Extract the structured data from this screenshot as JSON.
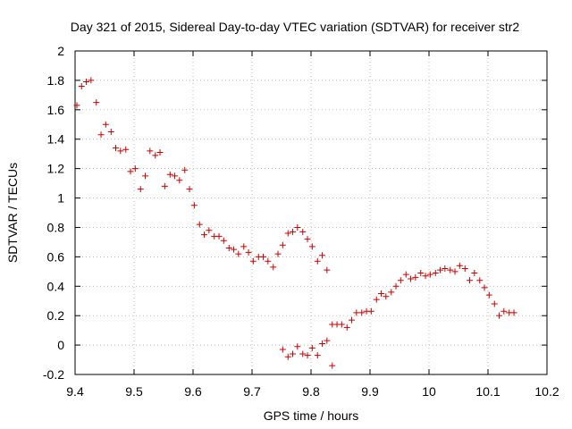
{
  "chart_data": {
    "type": "scatter",
    "title": "Day 321 of 2015, Sidereal Day-to-day VTEC variation (SDTVAR) for receiver str2",
    "xlabel": "GPS time / hours",
    "ylabel": "SDTVAR / TECUs",
    "xlim": [
      9.4,
      10.2
    ],
    "ylim": [
      -0.2,
      2.0
    ],
    "x_ticks": [
      9.4,
      9.5,
      9.6,
      9.7,
      9.8,
      9.9,
      10.0,
      10.1,
      10.2
    ],
    "x_tick_labels": [
      "9.4",
      "9.5",
      "9.6",
      "9.7",
      "9.8",
      "9.9",
      "10",
      "10.1",
      "10.2"
    ],
    "y_ticks": [
      -0.2,
      0,
      0.2,
      0.4,
      0.6,
      0.8,
      1.0,
      1.2,
      1.4,
      1.6,
      1.8,
      2.0
    ],
    "y_tick_labels": [
      "-0.2",
      "0",
      "0.2",
      "0.4",
      "0.6",
      "0.8",
      "1",
      "1.2",
      "1.4",
      "1.6",
      "1.8",
      "2"
    ],
    "grid": true,
    "marker": "+",
    "color": "#cc0000",
    "series": [
      {
        "name": "str2",
        "x": [
          9.403,
          9.411,
          9.419,
          9.427,
          9.436,
          9.444,
          9.452,
          9.461,
          9.469,
          9.477,
          9.486,
          9.494,
          9.502,
          9.511,
          9.519,
          9.527,
          9.536,
          9.544,
          9.552,
          9.561,
          9.569,
          9.577,
          9.586,
          9.594,
          9.602,
          9.611,
          9.619,
          9.627,
          9.636,
          9.644,
          9.652,
          9.661,
          9.669,
          9.677,
          9.686,
          9.694,
          9.702,
          9.711,
          9.719,
          9.727,
          9.736,
          9.744,
          9.752,
          9.761,
          9.769,
          9.777,
          9.786,
          9.794,
          9.802,
          9.811,
          9.819,
          9.827,
          9.836,
          9.752,
          9.761,
          9.769,
          9.777,
          9.786,
          9.794,
          9.802,
          9.811,
          9.819,
          9.827,
          9.836,
          9.844,
          9.852,
          9.861,
          9.869,
          9.877,
          9.886,
          9.894,
          9.902,
          9.911,
          9.919,
          9.927,
          9.936,
          9.944,
          9.952,
          9.961,
          9.969,
          9.977,
          9.986,
          9.994,
          10.002,
          10.011,
          10.019,
          10.027,
          10.036,
          10.044,
          10.052,
          10.061,
          10.069,
          10.077,
          10.086,
          10.094,
          10.102,
          10.111,
          10.119,
          10.127,
          10.136,
          10.144
        ],
        "y": [
          1.63,
          1.76,
          1.79,
          1.8,
          1.65,
          1.43,
          1.5,
          1.45,
          1.34,
          1.32,
          1.33,
          1.18,
          1.2,
          1.06,
          1.15,
          1.32,
          1.29,
          1.31,
          1.08,
          1.16,
          1.15,
          1.12,
          1.19,
          1.06,
          0.95,
          0.82,
          0.75,
          0.78,
          0.74,
          0.74,
          0.71,
          0.66,
          0.65,
          0.62,
          0.67,
          0.63,
          0.57,
          0.6,
          0.6,
          0.57,
          0.53,
          0.62,
          0.68,
          0.76,
          0.77,
          0.8,
          0.77,
          0.72,
          0.67,
          0.57,
          0.61,
          0.51,
          -0.14,
          -0.03,
          -0.08,
          -0.06,
          -0.01,
          -0.06,
          -0.07,
          -0.02,
          -0.07,
          0.01,
          0.03,
          0.14,
          0.14,
          0.14,
          0.12,
          0.17,
          0.22,
          0.22,
          0.23,
          0.23,
          0.31,
          0.35,
          0.33,
          0.36,
          0.4,
          0.44,
          0.48,
          0.45,
          0.46,
          0.49,
          0.47,
          0.48,
          0.49,
          0.51,
          0.52,
          0.51,
          0.5,
          0.54,
          0.52,
          0.44,
          0.49,
          0.44,
          0.39,
          0.34,
          0.28,
          0.2,
          0.23,
          0.22,
          0.22
        ]
      }
    ]
  }
}
